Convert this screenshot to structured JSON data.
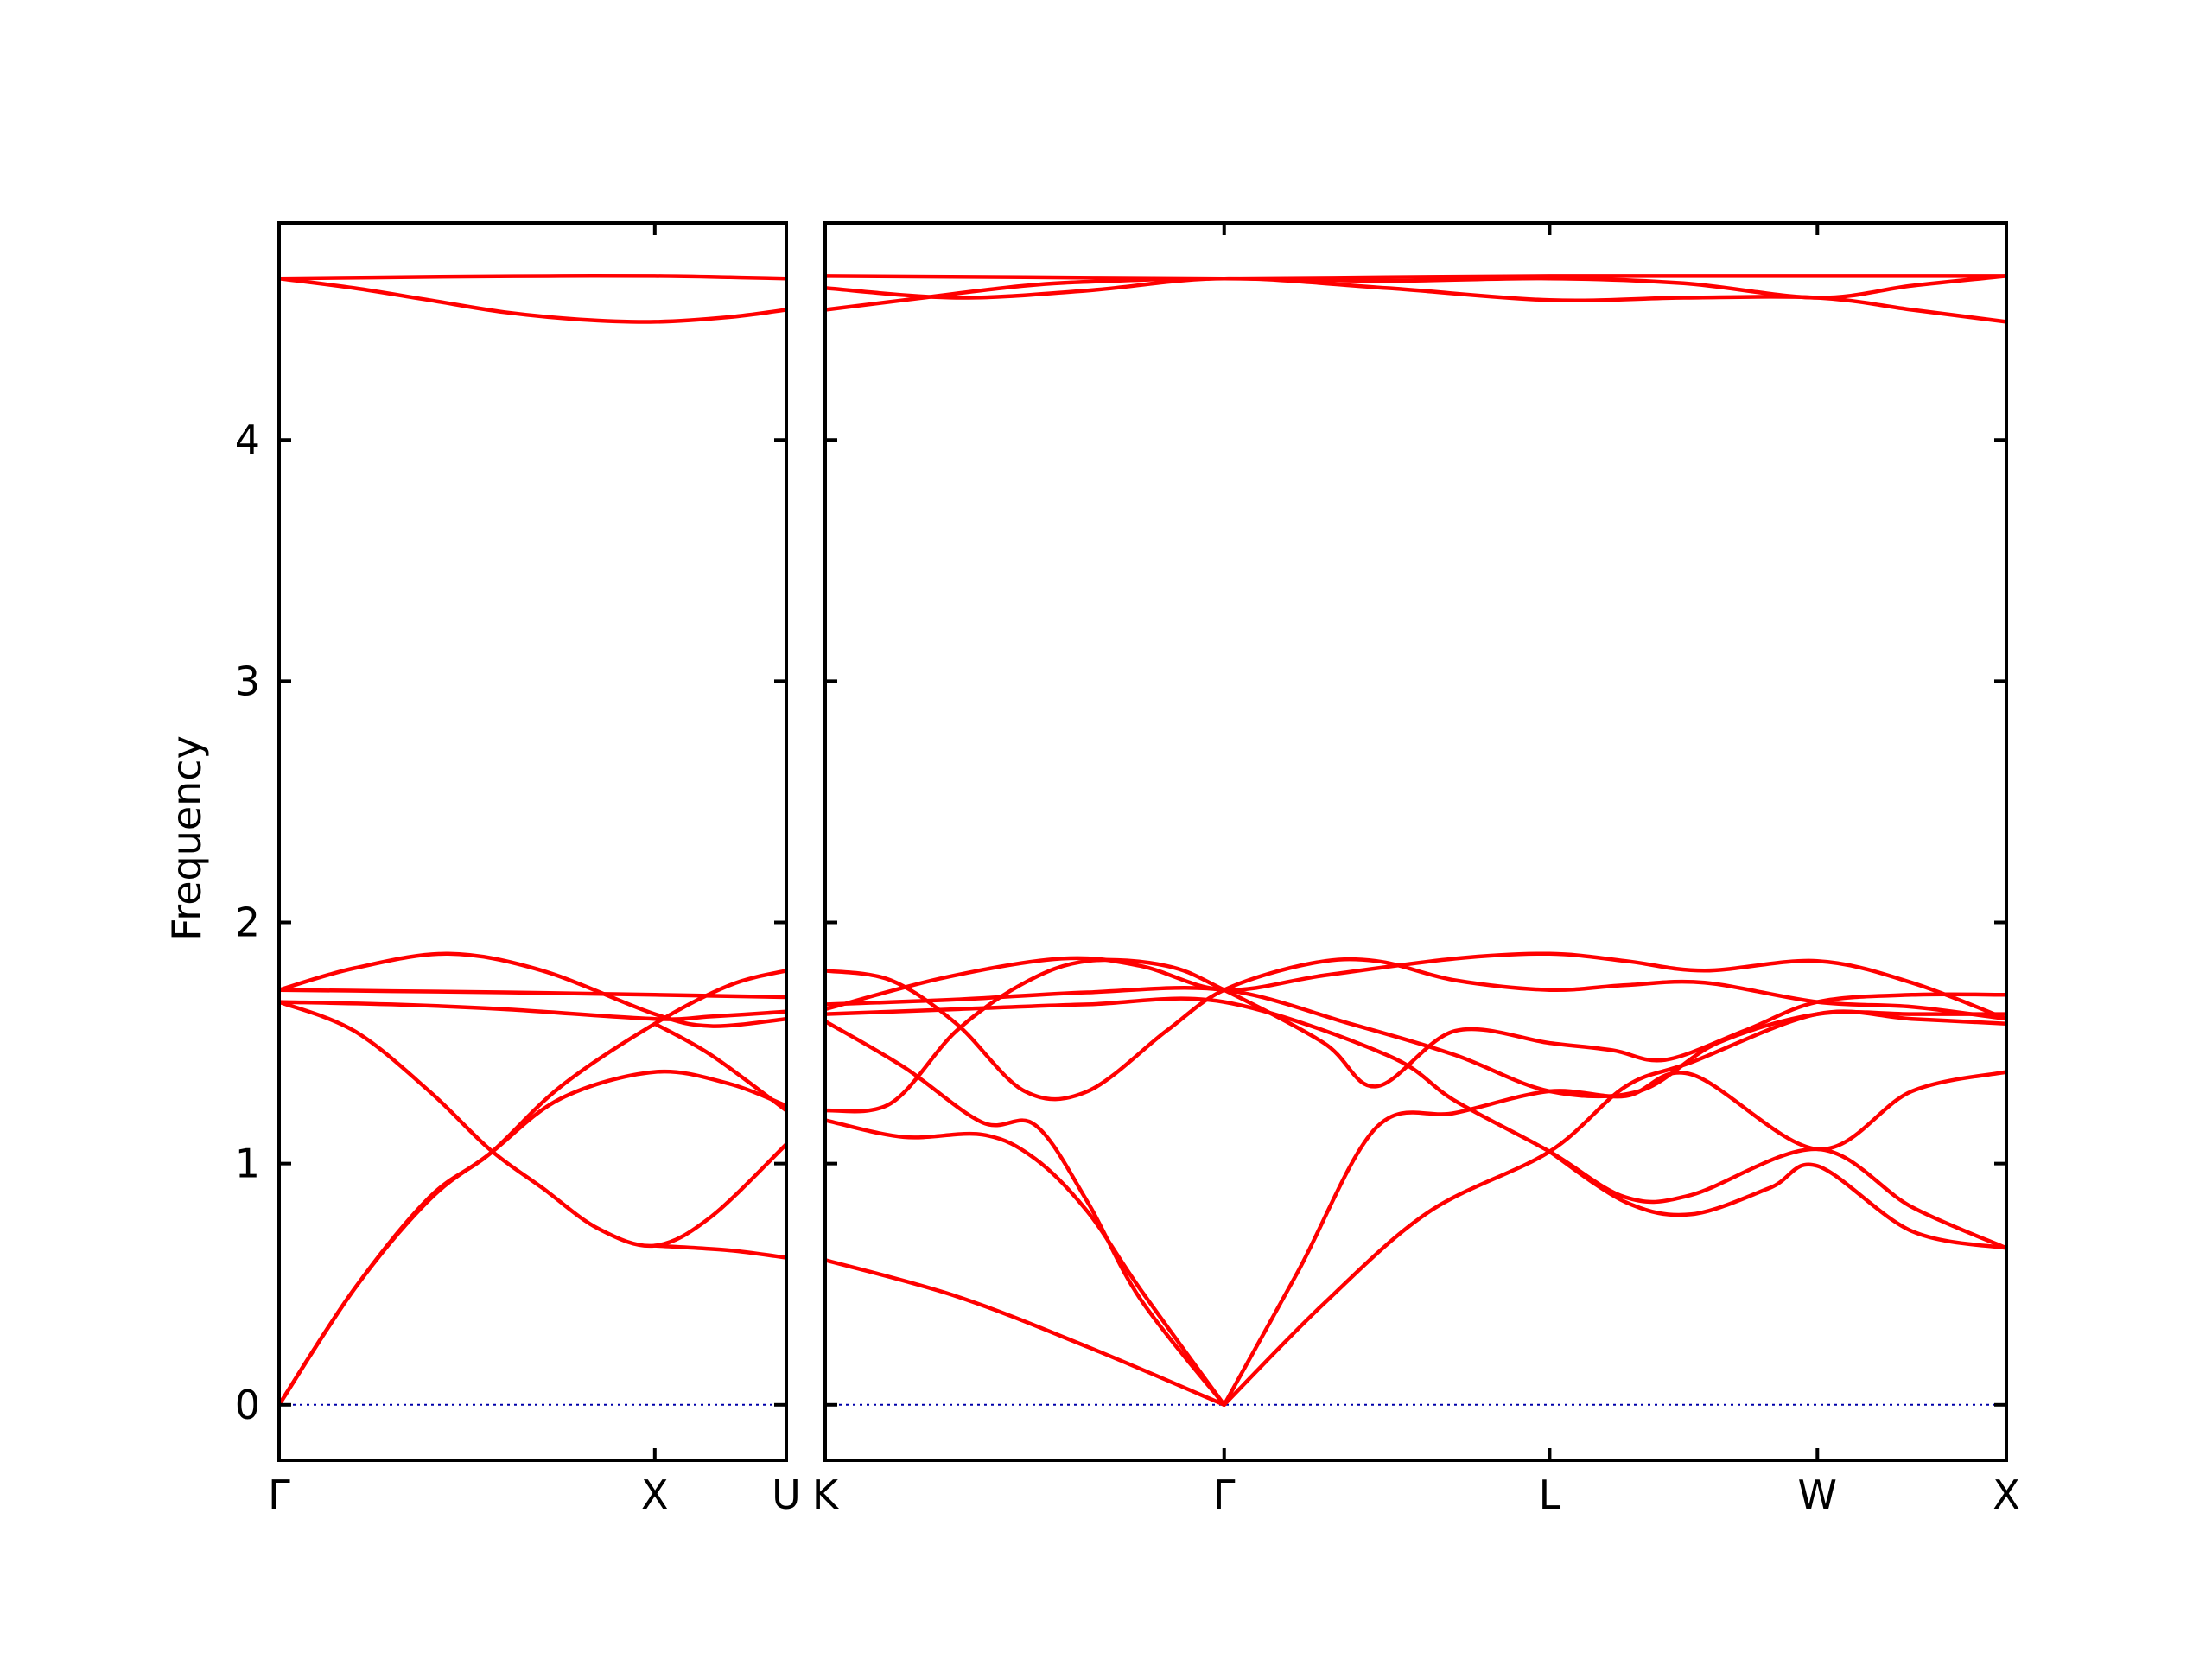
{
  "chart_data": {
    "type": "line",
    "ylabel": "Frequency",
    "ylim": [
      -0.23,
      4.9
    ],
    "yticks": [
      0,
      1,
      2,
      3,
      4
    ],
    "grid": false,
    "colors": {
      "bands": "#ff0000",
      "zero_line": "#0000aa",
      "frame": "#000000"
    },
    "panels": [
      {
        "name": "left-panel",
        "xlim": [
          0,
          1.35
        ],
        "xticks": [
          {
            "pos": 0,
            "label": "Γ"
          },
          {
            "pos": 1.0,
            "label": "X"
          },
          {
            "pos": 1.35,
            "label": "U"
          }
        ],
        "series": [
          {
            "x": [
              0,
              0.25,
              0.5,
              0.75,
              1.0,
              1.2,
              1.35
            ],
            "y": [
              4.67,
              4.674,
              4.678,
              4.68,
              4.68,
              4.675,
              4.67
            ]
          },
          {
            "x": [
              0,
              0.2,
              0.4,
              0.6,
              0.8,
              1.0,
              1.2,
              1.35
            ],
            "y": [
              4.67,
              4.63,
              4.58,
              4.53,
              4.5,
              4.49,
              4.51,
              4.54
            ]
          },
          {
            "x": [
              0,
              0.2,
              0.45,
              0.7,
              1.0,
              1.15,
              1.35
            ],
            "y": [
              1.72,
              1.81,
              1.87,
              1.8,
              1.62,
              1.57,
              1.6
            ]
          },
          {
            "x": [
              0,
              0.3,
              0.6,
              1.0,
              1.35
            ],
            "y": [
              1.72,
              1.715,
              1.71,
              1.7,
              1.69
            ]
          },
          {
            "x": [
              0,
              0.3,
              0.6,
              1.0,
              1.15,
              1.35
            ],
            "y": [
              1.67,
              1.66,
              1.64,
              1.6,
              1.61,
              1.63
            ]
          },
          {
            "x": [
              0,
              0.2,
              0.4,
              0.56,
              0.7,
              0.85,
              1.0,
              1.15,
              1.35
            ],
            "y": [
              1.67,
              1.55,
              1.3,
              1.06,
              0.9,
              0.73,
              0.66,
              0.78,
              1.08
            ]
          },
          {
            "x": [
              0,
              0.2,
              0.4,
              0.56,
              0.75,
              1.0,
              1.2,
              1.35
            ],
            "y": [
              0,
              0.48,
              0.86,
              1.04,
              1.32,
              1.58,
              1.74,
              1.8
            ]
          },
          {
            "x": [
              0,
              0.2,
              0.4,
              0.56,
              0.75,
              1.0,
              1.2,
              1.35
            ],
            "y": [
              0,
              0.48,
              0.85,
              1.04,
              1.27,
              1.38,
              1.33,
              1.24
            ]
          },
          {
            "x": [
              1.0,
              1.15,
              1.35
            ],
            "y": [
              1.58,
              1.45,
              1.22
            ]
          },
          {
            "x": [
              1.0,
              1.2,
              1.35
            ],
            "y": [
              0.66,
              0.64,
              0.61
            ]
          }
        ]
      },
      {
        "name": "right-panel",
        "xlim": [
          0,
          4.5
        ],
        "xticks": [
          {
            "pos": 0,
            "label": "K"
          },
          {
            "pos": 1.52,
            "label": "Γ"
          },
          {
            "pos": 2.76,
            "label": "L"
          },
          {
            "pos": 3.78,
            "label": "W"
          },
          {
            "pos": 4.5,
            "label": "X"
          }
        ],
        "series": [
          {
            "x": [
              0,
              0.76,
              1.52,
              2.14,
              2.76,
              3.27,
              3.78,
              4.14,
              4.5
            ],
            "y": [
              4.68,
              4.675,
              4.67,
              4.675,
              4.68,
              4.68,
              4.68,
              4.68,
              4.68
            ]
          },
          {
            "x": [
              0,
              0.5,
              1.0,
              1.52,
              2.14,
              2.76,
              3.27,
              3.78,
              4.14,
              4.5
            ],
            "y": [
              4.63,
              4.59,
              4.62,
              4.67,
              4.63,
              4.58,
              4.59,
              4.59,
              4.54,
              4.49
            ]
          },
          {
            "x": [
              0,
              0.3,
              0.76,
              1.1,
              1.52,
              2.14,
              2.76,
              3.27,
              3.78,
              4.14,
              4.5
            ],
            "y": [
              4.54,
              4.58,
              4.64,
              4.66,
              4.67,
              4.66,
              4.67,
              4.65,
              4.59,
              4.64,
              4.68
            ]
          },
          {
            "x": [
              0,
              0.45,
              0.9,
              1.2,
              1.52,
              1.9,
              2.4,
              2.76,
              3.05,
              3.35,
              3.78,
              4.14,
              4.5
            ],
            "y": [
              1.64,
              1.77,
              1.85,
              1.82,
              1.72,
              1.78,
              1.85,
              1.87,
              1.84,
              1.8,
              1.84,
              1.75,
              1.6
            ]
          },
          {
            "x": [
              0,
              0.25,
              0.5,
              0.76,
              1.0,
              1.3,
              1.52,
              1.85,
              2.1,
              2.4,
              2.76,
              3.05,
              3.35,
              3.78,
              4.14,
              4.5
            ],
            "y": [
              1.8,
              1.76,
              1.58,
              1.3,
              1.3,
              1.55,
              1.72,
              1.83,
              1.84,
              1.76,
              1.72,
              1.74,
              1.75,
              1.67,
              1.65,
              1.6
            ]
          },
          {
            "x": [
              0,
              0.25,
              0.5,
              0.76,
              1.0,
              1.3,
              1.52,
              1.9,
              2.1,
              2.4,
              2.76,
              3.0,
              3.2,
              3.5,
              3.78,
              4.14,
              4.5
            ],
            "y": [
              1.22,
              1.25,
              1.55,
              1.75,
              1.84,
              1.82,
              1.72,
              1.5,
              1.32,
              1.55,
              1.5,
              1.47,
              1.43,
              1.55,
              1.67,
              1.7,
              1.7
            ]
          },
          {
            "x": [
              0,
              0.5,
              1.0,
              1.52,
              2.0,
              2.4,
              2.76,
              3.1,
              3.4,
              3.78,
              4.14,
              4.5
            ],
            "y": [
              1.66,
              1.68,
              1.71,
              1.72,
              1.58,
              1.45,
              1.3,
              1.3,
              1.5,
              1.62,
              1.62,
              1.62
            ]
          },
          {
            "x": [
              0,
              0.5,
              1.0,
              1.52,
              2.14,
              2.4,
              2.76,
              3.05,
              3.3,
              3.78,
              4.14,
              4.5
            ],
            "y": [
              1.62,
              1.64,
              1.66,
              1.67,
              1.45,
              1.26,
              1.05,
              0.86,
              0.87,
              1.06,
              0.82,
              0.65
            ]
          },
          {
            "x": [
              0,
              0.3,
              0.6,
              0.8,
              1.0,
              1.2,
              1.52
            ],
            "y": [
              1.59,
              1.4,
              1.17,
              1.16,
              0.84,
              0.44,
              0
            ]
          },
          {
            "x": [
              0,
              0.3,
              0.6,
              0.8,
              1.0,
              1.2,
              1.52
            ],
            "y": [
              1.18,
              1.11,
              1.12,
              1.02,
              0.8,
              0.48,
              0
            ]
          },
          {
            "x": [
              1.52,
              1.8,
              2.1,
              2.4,
              2.76,
              3.05,
              3.3,
              3.78,
              4.14,
              4.5
            ],
            "y": [
              0,
              0.55,
              1.15,
              1.21,
              1.3,
              1.28,
              1.37,
              1.06,
              1.3,
              1.38
            ]
          },
          {
            "x": [
              1.52,
              1.9,
              2.3,
              2.76,
              3.05,
              3.3,
              3.78,
              4.14,
              4.5
            ],
            "y": [
              0,
              0.42,
              0.8,
              1.05,
              1.32,
              1.42,
              1.62,
              1.6,
              1.58
            ]
          },
          {
            "x": [
              2.76,
              3.05,
              3.3,
              3.6,
              3.78,
              4.14,
              4.5
            ],
            "y": [
              1.05,
              0.84,
              0.79,
              0.9,
              0.99,
              0.72,
              0.65
            ]
          },
          {
            "x": [
              0,
              0.5,
              1.0,
              1.52
            ],
            "y": [
              0.6,
              0.45,
              0.24,
              0
            ]
          }
        ]
      }
    ]
  }
}
